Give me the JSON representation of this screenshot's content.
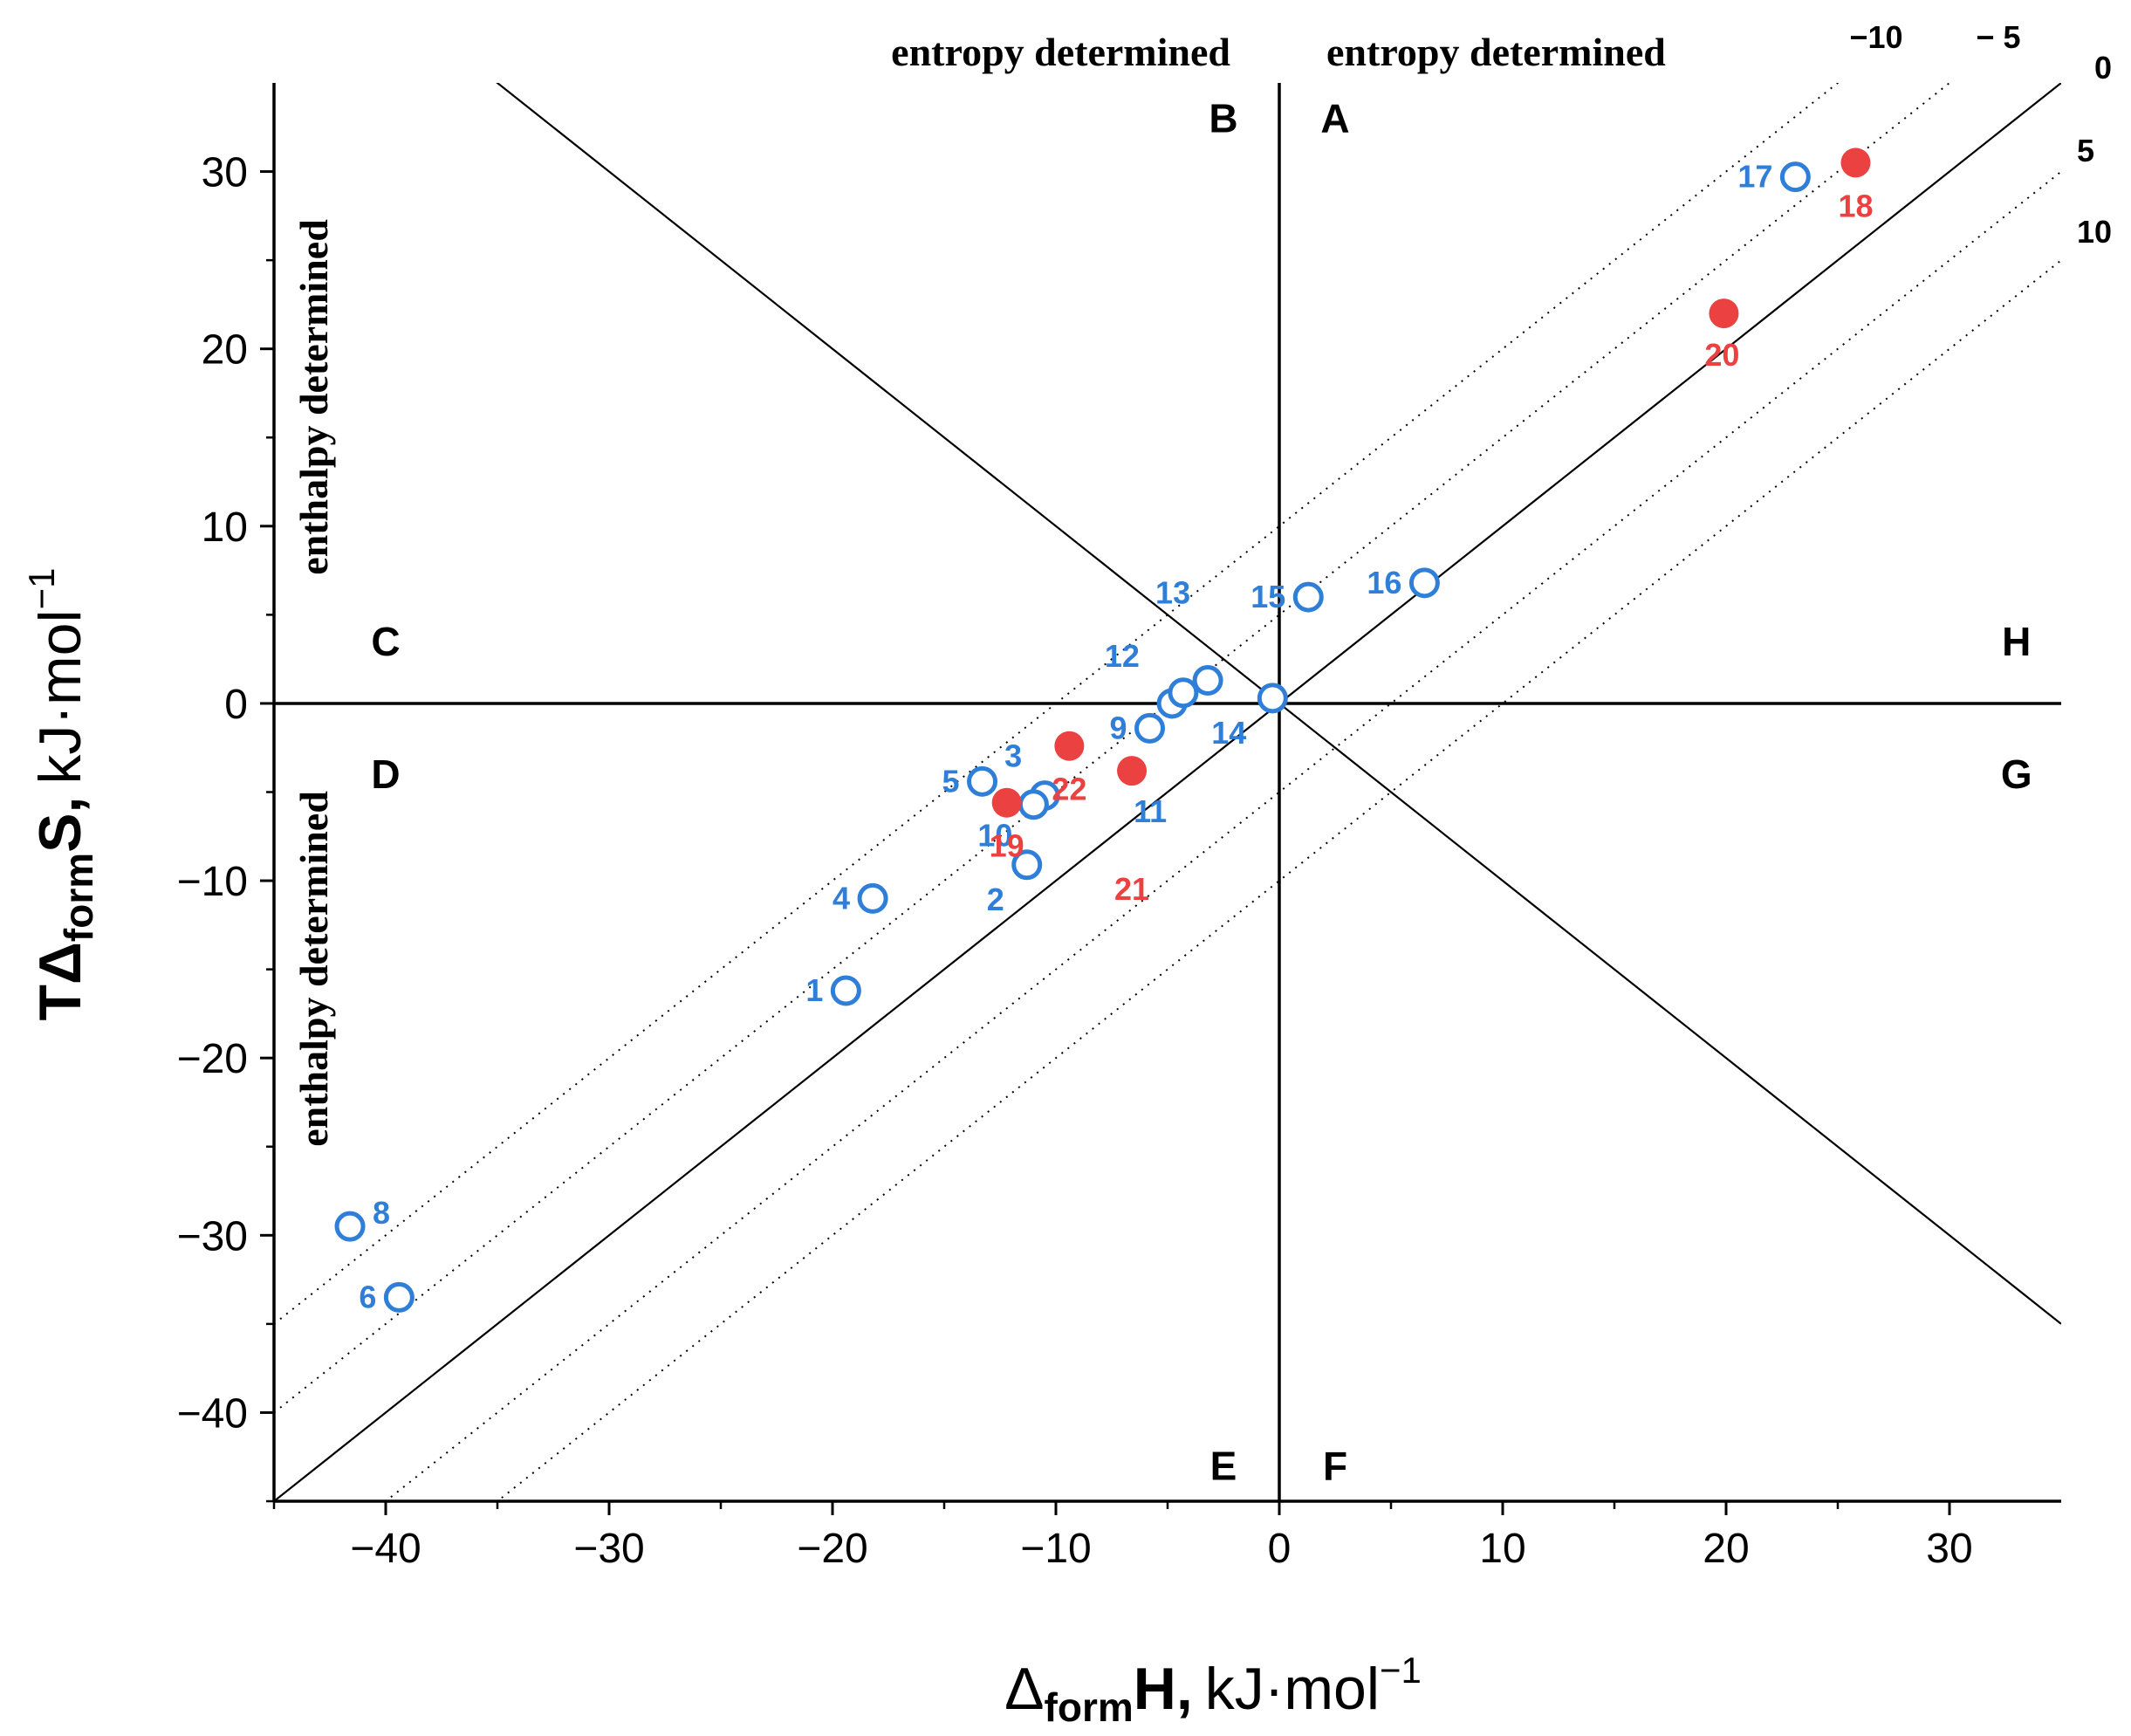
{
  "chart_data": {
    "type": "scatter",
    "xlabel": {
      "main": "Δ",
      "sub": "form",
      "var": "H,",
      "unit": "kJ·mol",
      "exp": "−1"
    },
    "ylabel": {
      "main": "TΔ",
      "sub": "form",
      "var": "S,",
      "unit": "kJ·mol",
      "exp": "−1"
    },
    "xlim": [
      -45,
      35
    ],
    "ylim": [
      -45,
      35
    ],
    "x_ticks": [
      {
        "v": -40,
        "label": "−40"
      },
      {
        "v": -30,
        "label": "−30"
      },
      {
        "v": -20,
        "label": "−20"
      },
      {
        "v": -10,
        "label": "−10"
      },
      {
        "v": 0,
        "label": "0"
      },
      {
        "v": 10,
        "label": "10"
      },
      {
        "v": 20,
        "label": "20"
      },
      {
        "v": 30,
        "label": "30"
      }
    ],
    "y_ticks": [
      {
        "v": -40,
        "label": "−40"
      },
      {
        "v": -30,
        "label": "−30"
      },
      {
        "v": -20,
        "label": "−20"
      },
      {
        "v": -10,
        "label": "−10"
      },
      {
        "v": 0,
        "label": "0"
      },
      {
        "v": 10,
        "label": "10"
      },
      {
        "v": 20,
        "label": "20"
      },
      {
        "v": 30,
        "label": "30"
      }
    ],
    "region_labels": {
      "entropy_left": "entropy determined",
      "entropy_right": "entropy determined",
      "enthalpy_upper": "enthalpy determined",
      "enthalpy_lower": "enthalpy determined"
    },
    "quadrant_labels": [
      {
        "text": "A",
        "x": 2.5,
        "y": 33
      },
      {
        "text": "B",
        "x": -2.5,
        "y": 33
      },
      {
        "text": "C",
        "x": -40,
        "y": 3.5
      },
      {
        "text": "D",
        "x": -40,
        "y": -4
      },
      {
        "text": "E",
        "x": -2.5,
        "y": -43
      },
      {
        "text": "F",
        "x": 2.5,
        "y": -43
      },
      {
        "text": "G",
        "x": 33,
        "y": -4
      },
      {
        "text": "H",
        "x": 33,
        "y": 3.5
      }
    ],
    "isolines": [
      {
        "dG": -10,
        "label": "−10",
        "style": "dotted"
      },
      {
        "dG": -5,
        "label": "− 5",
        "style": "dotted"
      },
      {
        "dG": 0,
        "label": "0",
        "style": "solid"
      },
      {
        "dG": 5,
        "label": "5",
        "style": "dotted"
      },
      {
        "dG": 10,
        "label": "10",
        "style": "dotted"
      }
    ],
    "series": [
      {
        "name": "open",
        "color": "#2f7fd8",
        "points": [
          {
            "id": "1",
            "x": -19.4,
            "y": -16.2
          },
          {
            "id": "2",
            "x": -11.3,
            "y": -9.1
          },
          {
            "id": "3",
            "x": -10.5,
            "y": -5.2
          },
          {
            "id": "4",
            "x": -18.2,
            "y": -11.0
          },
          {
            "id": "5",
            "x": -13.3,
            "y": -4.4
          },
          {
            "id": "6",
            "x": -39.4,
            "y": -33.5
          },
          {
            "id": "8",
            "x": -41.6,
            "y": -29.5
          },
          {
            "id": "9",
            "x": -5.8,
            "y": -1.4
          },
          {
            "id": "10",
            "x": -11.0,
            "y": -5.7
          },
          {
            "id": "11",
            "x": -4.8,
            "y": 0.0
          },
          {
            "id": "12",
            "x": -4.3,
            "y": 0.6
          },
          {
            "id": "13",
            "x": -3.2,
            "y": 1.3
          },
          {
            "id": "14",
            "x": -0.3,
            "y": 0.3
          },
          {
            "id": "15",
            "x": 1.3,
            "y": 6.0
          },
          {
            "id": "16",
            "x": 6.5,
            "y": 6.8
          },
          {
            "id": "17",
            "x": 23.1,
            "y": 29.7
          }
        ]
      },
      {
        "name": "filled",
        "color": "#ec4141",
        "points": [
          {
            "id": "18",
            "x": 25.8,
            "y": 30.5
          },
          {
            "id": "19",
            "x": -12.2,
            "y": -5.6
          },
          {
            "id": "20",
            "x": 19.9,
            "y": 22.0
          },
          {
            "id": "21",
            "x": -6.6,
            "y": -3.8
          },
          {
            "id": "22",
            "x": -9.4,
            "y": -2.4
          }
        ]
      }
    ]
  }
}
